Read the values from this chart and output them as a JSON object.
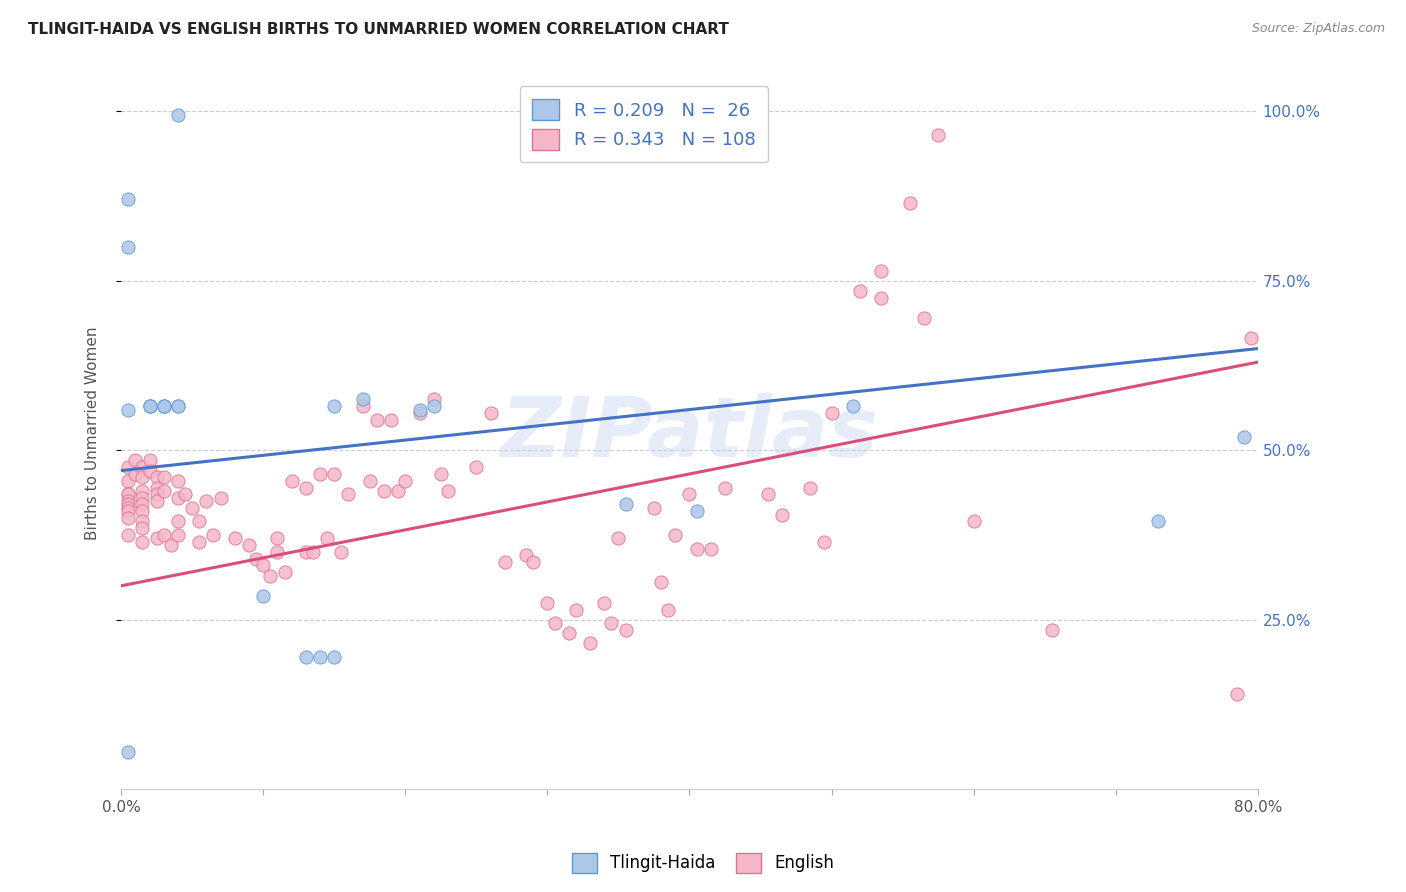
{
  "title": "TLINGIT-HAIDA VS ENGLISH BIRTHS TO UNMARRIED WOMEN CORRELATION CHART",
  "source": "Source: ZipAtlas.com",
  "ylabel": "Births to Unmarried Women",
  "xlim": [
    0.0,
    0.8
  ],
  "ylim": [
    0.0,
    1.05
  ],
  "xticks": [
    0.0,
    0.1,
    0.2,
    0.3,
    0.4,
    0.5,
    0.6,
    0.7,
    0.8
  ],
  "xticklabels": [
    "0.0%",
    "",
    "",
    "",
    "",
    "",
    "",
    "",
    "80.0%"
  ],
  "ytick_positions": [
    0.25,
    0.5,
    0.75,
    1.0
  ],
  "yticklabels": [
    "25.0%",
    "50.0%",
    "75.0%",
    "100.0%"
  ],
  "blue_R": 0.209,
  "blue_N": 26,
  "pink_R": 0.343,
  "pink_N": 108,
  "blue_fill": "#aec6e8",
  "pink_fill": "#f5b8c8",
  "blue_edge": "#5b9bd5",
  "pink_edge": "#e07090",
  "blue_line": "#4472c4",
  "pink_line": "#d94f7a",
  "watermark": "ZIPatlas",
  "blue_line_start_y": 0.47,
  "blue_line_end_y": 0.65,
  "pink_line_start_y": 0.3,
  "pink_line_end_y": 0.63,
  "blue_scatter_x": [
    0.005,
    0.04,
    0.005,
    0.005,
    0.005,
    0.02,
    0.02,
    0.02,
    0.03,
    0.03,
    0.03,
    0.04,
    0.04,
    0.1,
    0.13,
    0.14,
    0.15,
    0.15,
    0.17,
    0.21,
    0.22,
    0.355,
    0.405,
    0.515,
    0.73,
    0.79
  ],
  "blue_scatter_y": [
    0.055,
    0.995,
    0.87,
    0.8,
    0.56,
    0.565,
    0.565,
    0.565,
    0.565,
    0.565,
    0.565,
    0.565,
    0.565,
    0.285,
    0.195,
    0.195,
    0.195,
    0.565,
    0.575,
    0.56,
    0.565,
    0.42,
    0.41,
    0.565,
    0.395,
    0.52
  ],
  "pink_scatter_x": [
    0.005,
    0.005,
    0.005,
    0.005,
    0.005,
    0.005,
    0.005,
    0.005,
    0.005,
    0.005,
    0.01,
    0.01,
    0.015,
    0.015,
    0.015,
    0.015,
    0.015,
    0.015,
    0.015,
    0.015,
    0.015,
    0.02,
    0.02,
    0.025,
    0.025,
    0.025,
    0.025,
    0.025,
    0.03,
    0.03,
    0.03,
    0.035,
    0.04,
    0.04,
    0.04,
    0.04,
    0.045,
    0.05,
    0.055,
    0.055,
    0.06,
    0.065,
    0.07,
    0.08,
    0.09,
    0.095,
    0.1,
    0.105,
    0.11,
    0.11,
    0.115,
    0.12,
    0.13,
    0.13,
    0.135,
    0.14,
    0.145,
    0.15,
    0.155,
    0.16,
    0.17,
    0.175,
    0.18,
    0.185,
    0.19,
    0.195,
    0.2,
    0.21,
    0.22,
    0.225,
    0.23,
    0.25,
    0.26,
    0.27,
    0.285,
    0.29,
    0.3,
    0.305,
    0.315,
    0.32,
    0.33,
    0.34,
    0.345,
    0.35,
    0.355,
    0.375,
    0.38,
    0.385,
    0.39,
    0.4,
    0.405,
    0.415,
    0.425,
    0.455,
    0.465,
    0.485,
    0.495,
    0.5,
    0.52,
    0.535,
    0.535,
    0.555,
    0.565,
    0.575,
    0.6,
    0.655,
    0.785,
    0.795
  ],
  "pink_scatter_y": [
    0.475,
    0.455,
    0.435,
    0.435,
    0.425,
    0.42,
    0.415,
    0.41,
    0.4,
    0.375,
    0.485,
    0.465,
    0.475,
    0.46,
    0.44,
    0.43,
    0.42,
    0.41,
    0.395,
    0.385,
    0.365,
    0.485,
    0.47,
    0.46,
    0.445,
    0.435,
    0.425,
    0.37,
    0.46,
    0.44,
    0.375,
    0.36,
    0.455,
    0.43,
    0.395,
    0.375,
    0.435,
    0.415,
    0.395,
    0.365,
    0.425,
    0.375,
    0.43,
    0.37,
    0.36,
    0.34,
    0.33,
    0.315,
    0.37,
    0.35,
    0.32,
    0.455,
    0.35,
    0.445,
    0.35,
    0.465,
    0.37,
    0.465,
    0.35,
    0.435,
    0.565,
    0.455,
    0.545,
    0.44,
    0.545,
    0.44,
    0.455,
    0.555,
    0.575,
    0.465,
    0.44,
    0.475,
    0.555,
    0.335,
    0.345,
    0.335,
    0.275,
    0.245,
    0.23,
    0.265,
    0.215,
    0.275,
    0.245,
    0.37,
    0.235,
    0.415,
    0.305,
    0.265,
    0.375,
    0.435,
    0.355,
    0.355,
    0.445,
    0.435,
    0.405,
    0.445,
    0.365,
    0.555,
    0.735,
    0.725,
    0.765,
    0.865,
    0.695,
    0.965,
    0.395,
    0.235,
    0.14,
    0.665
  ]
}
